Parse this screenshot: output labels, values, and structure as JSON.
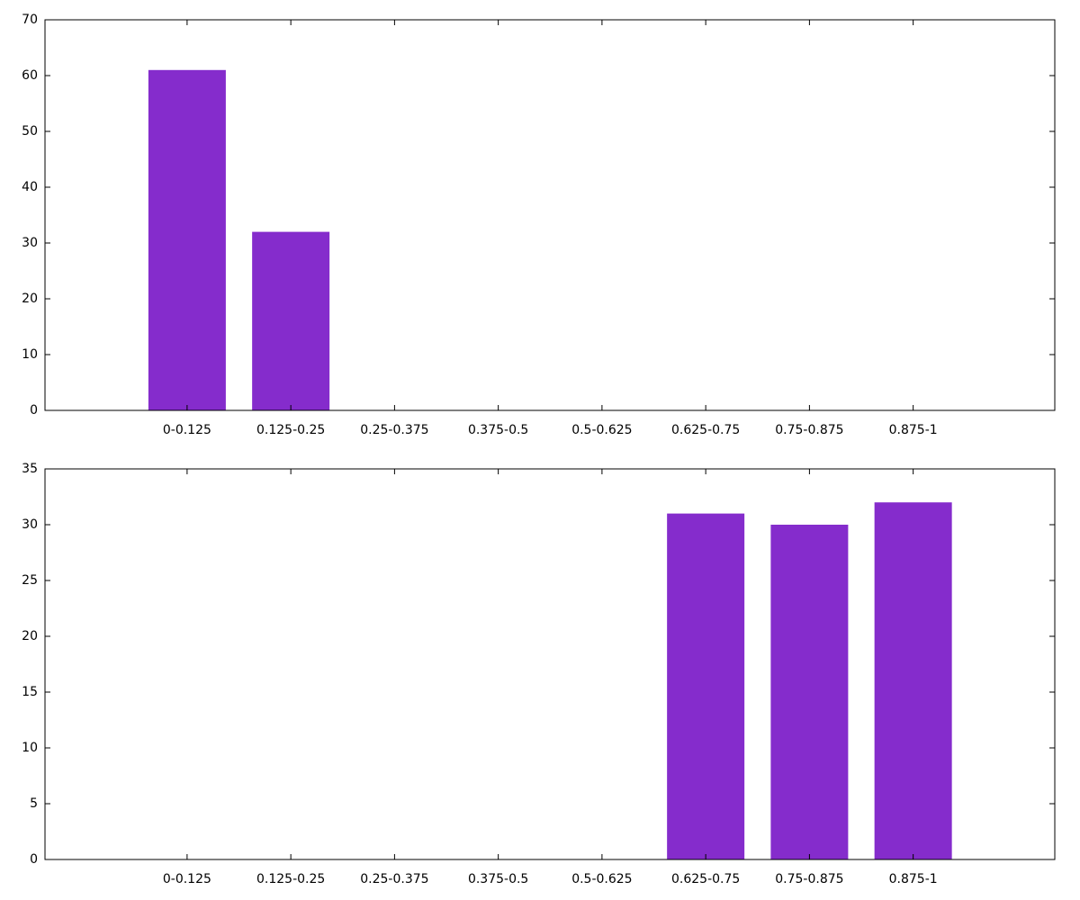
{
  "chart_data": [
    {
      "type": "bar",
      "categories": [
        "0-0.125",
        "0.125-0.25",
        "0.25-0.375",
        "0.375-0.5",
        "0.5-0.625",
        "0.625-0.75",
        "0.75-0.875",
        "0.875-1"
      ],
      "values": [
        61,
        32,
        0,
        0,
        0,
        0,
        0,
        0
      ],
      "color": "#852ccc",
      "ylim": [
        0,
        70
      ],
      "yticks": [
        0,
        10,
        20,
        30,
        40,
        50,
        60,
        70
      ]
    },
    {
      "type": "bar",
      "categories": [
        "0-0.125",
        "0.125-0.25",
        "0.25-0.375",
        "0.375-0.5",
        "0.5-0.625",
        "0.625-0.75",
        "0.75-0.875",
        "0.875-1"
      ],
      "values": [
        0,
        0,
        0,
        0,
        0,
        31,
        30,
        32
      ],
      "color": "#852ccc",
      "ylim": [
        0,
        35
      ],
      "yticks": [
        0,
        5,
        10,
        15,
        20,
        25,
        30,
        35
      ]
    }
  ]
}
